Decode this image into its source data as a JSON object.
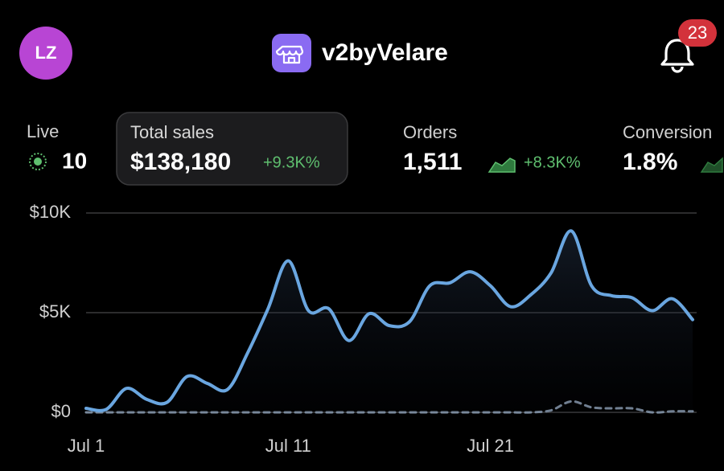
{
  "header": {
    "avatar": "LZ",
    "store_name": "v2byVelare",
    "notification_count": 23
  },
  "stats": [
    {
      "label": "Live",
      "value": "10"
    },
    {
      "label": "Total sales",
      "value": "$138,180",
      "change": "+9.3K%"
    },
    {
      "label": "Orders",
      "value": "1,511",
      "change": "+8.3K%"
    },
    {
      "label": "Conversion",
      "value": "1.8%"
    }
  ],
  "chart_data": {
    "type": "line",
    "x": [
      1,
      2,
      3,
      4,
      5,
      6,
      7,
      8,
      9,
      10,
      11,
      12,
      13,
      14,
      15,
      16,
      17,
      18,
      19,
      20,
      21,
      22,
      23,
      24,
      25,
      26,
      27,
      28,
      29,
      30,
      31
    ],
    "series": [
      {
        "color": "#6aa6e0",
        "values": [
          200,
          150,
          1200,
          650,
          500,
          1800,
          1450,
          1150,
          3000,
          5200,
          7600,
          5100,
          5200,
          3600,
          4950,
          4350,
          4550,
          6350,
          6500,
          7050,
          6350,
          5300,
          5900,
          7000,
          9100,
          6350,
          5850,
          5750,
          5100,
          5700,
          4650
        ]
      },
      {
        "color": "#7d8da0",
        "dashed": true,
        "values": [
          0,
          0,
          0,
          0,
          0,
          0,
          0,
          0,
          0,
          0,
          0,
          0,
          0,
          0,
          0,
          0,
          0,
          0,
          0,
          0,
          0,
          0,
          0,
          100,
          550,
          250,
          200,
          200,
          0,
          50,
          50
        ]
      }
    ],
    "xlim": [
      1,
      31
    ],
    "xticks": [
      {
        "value": 1,
        "label": "Jul 1"
      },
      {
        "value": 11,
        "label": "Jul 11"
      },
      {
        "value": 21,
        "label": "Jul 21"
      }
    ],
    "ylim": [
      0,
      10000
    ],
    "yticks": [
      {
        "value": 0,
        "label": "$0"
      },
      {
        "value": 5000,
        "label": "$5K"
      },
      {
        "value": 10000,
        "label": "$10K"
      }
    ],
    "grid": true
  }
}
